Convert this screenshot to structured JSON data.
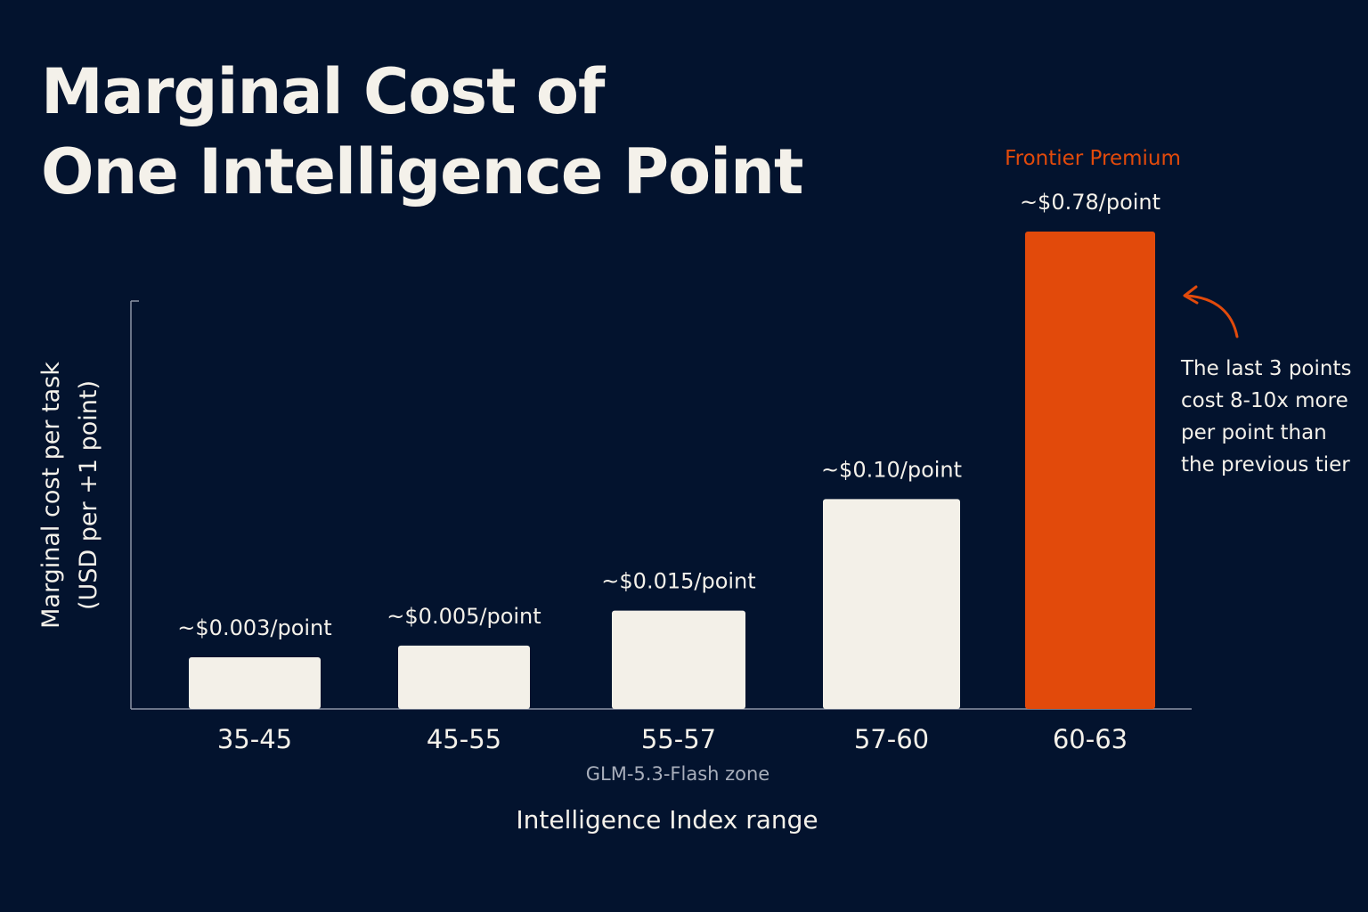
{
  "title": {
    "line1": "Marginal Cost of",
    "line2": "One Intelligence Point"
  },
  "annotation": {
    "lines": [
      "The last 3 points",
      "cost 8-10x more",
      "per point than",
      "the previous tier"
    ]
  },
  "colors": {
    "background": "#03132e",
    "bar": "#f3f0e8",
    "highlight": "#e24a0b",
    "text": "#f4f1ea",
    "muted_text": "#a8aebb",
    "axis": "#8d95a6"
  },
  "chart_data": {
    "type": "bar",
    "title": "Marginal Cost of One Intelligence Point",
    "xlabel": "Intelligence Index range",
    "ylabel_lines": [
      "Marginal cost per task",
      "(USD per +1 point)"
    ],
    "categories": [
      "35-45",
      "45-55",
      "55-57",
      "57-60",
      "60-63"
    ],
    "values": [
      0.003,
      0.005,
      0.015,
      0.1,
      0.78
    ],
    "data_labels": [
      "~$0.003/point",
      "~$0.005/point",
      "~$0.015/point",
      "~$0.10/point",
      "~$0.78/point"
    ],
    "y_scale": "nonlinear",
    "y_ticks_shown": false,
    "grid": false,
    "highlight_index": 4,
    "highlight_label": "Frontier Premium",
    "zone_label": "GLM-5.3-Flash zone",
    "zone_label_category": "45-55"
  }
}
